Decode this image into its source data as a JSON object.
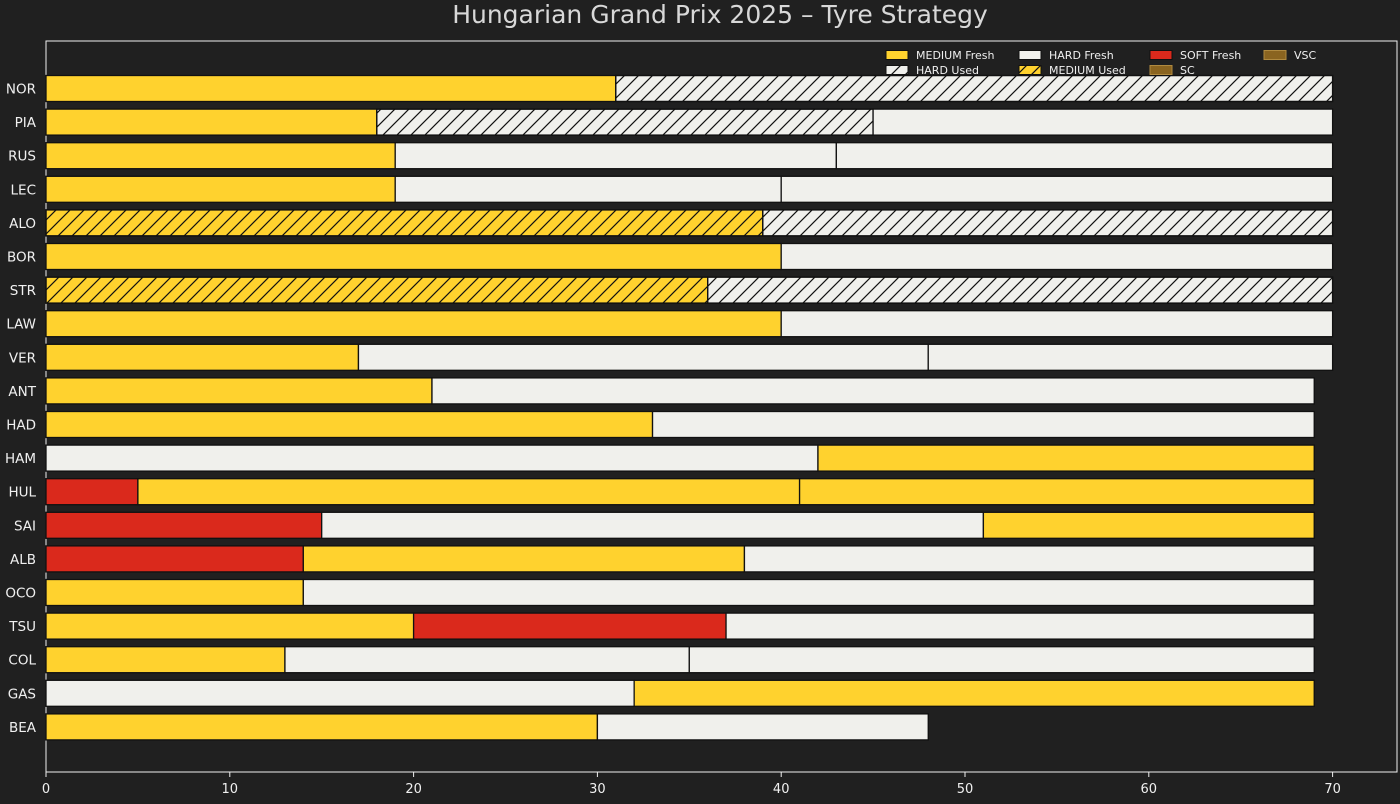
{
  "chart_data": {
    "type": "bar",
    "orientation": "horizontal",
    "stacked": true,
    "title": "Hungarian Grand Prix 2025  –  Tyre Strategy",
    "xlabel": "",
    "ylabel": "",
    "xlim": [
      0,
      73.5
    ],
    "xticks": [
      0,
      10,
      20,
      30,
      40,
      50,
      60,
      70
    ],
    "grid": false,
    "legend_position": "top-right",
    "colors": {
      "background": "#202020",
      "axes_edge": "#f0f0f0",
      "text": "#f0f0f0",
      "title": "#d8d8d8",
      "MEDIUM": "#ffd22e",
      "HARD": "#f0f0ec",
      "SOFT": "#da291c",
      "SC": "#8a6420",
      "VSC": "#8a6420",
      "edge": "#111111"
    },
    "legend": [
      {
        "label": "MEDIUM Fresh",
        "compound": "MEDIUM",
        "used": false
      },
      {
        "label": "HARD Used",
        "compound": "HARD",
        "used": true
      },
      {
        "label": "HARD Fresh",
        "compound": "HARD",
        "used": false
      },
      {
        "label": "MEDIUM Used",
        "compound": "MEDIUM",
        "used": true
      },
      {
        "label": "SOFT Fresh",
        "compound": "SOFT",
        "used": false
      },
      {
        "label": "SC",
        "compound": "SC",
        "used": false
      },
      {
        "label": "VSC",
        "compound": "VSC",
        "used": false
      }
    ],
    "drivers": [
      {
        "code": "NOR",
        "stints": [
          {
            "compound": "MEDIUM",
            "used": false,
            "start": 0,
            "end": 31
          },
          {
            "compound": "HARD",
            "used": true,
            "start": 31,
            "end": 70
          }
        ]
      },
      {
        "code": "PIA",
        "stints": [
          {
            "compound": "MEDIUM",
            "used": false,
            "start": 0,
            "end": 18
          },
          {
            "compound": "HARD",
            "used": true,
            "start": 18,
            "end": 45
          },
          {
            "compound": "HARD",
            "used": false,
            "start": 45,
            "end": 70
          }
        ]
      },
      {
        "code": "RUS",
        "stints": [
          {
            "compound": "MEDIUM",
            "used": false,
            "start": 0,
            "end": 19
          },
          {
            "compound": "HARD",
            "used": false,
            "start": 19,
            "end": 43
          },
          {
            "compound": "HARD",
            "used": false,
            "start": 43,
            "end": 70
          }
        ]
      },
      {
        "code": "LEC",
        "stints": [
          {
            "compound": "MEDIUM",
            "used": false,
            "start": 0,
            "end": 19
          },
          {
            "compound": "HARD",
            "used": false,
            "start": 19,
            "end": 40
          },
          {
            "compound": "HARD",
            "used": false,
            "start": 40,
            "end": 70
          }
        ]
      },
      {
        "code": "ALO",
        "stints": [
          {
            "compound": "MEDIUM",
            "used": true,
            "start": 0,
            "end": 39
          },
          {
            "compound": "HARD",
            "used": true,
            "start": 39,
            "end": 70
          }
        ]
      },
      {
        "code": "BOR",
        "stints": [
          {
            "compound": "MEDIUM",
            "used": false,
            "start": 0,
            "end": 40
          },
          {
            "compound": "HARD",
            "used": false,
            "start": 40,
            "end": 70
          }
        ]
      },
      {
        "code": "STR",
        "stints": [
          {
            "compound": "MEDIUM",
            "used": true,
            "start": 0,
            "end": 36
          },
          {
            "compound": "HARD",
            "used": true,
            "start": 36,
            "end": 70
          }
        ]
      },
      {
        "code": "LAW",
        "stints": [
          {
            "compound": "MEDIUM",
            "used": false,
            "start": 0,
            "end": 40
          },
          {
            "compound": "HARD",
            "used": false,
            "start": 40,
            "end": 70
          }
        ]
      },
      {
        "code": "VER",
        "stints": [
          {
            "compound": "MEDIUM",
            "used": false,
            "start": 0,
            "end": 17
          },
          {
            "compound": "HARD",
            "used": false,
            "start": 17,
            "end": 48
          },
          {
            "compound": "HARD",
            "used": false,
            "start": 48,
            "end": 70
          }
        ]
      },
      {
        "code": "ANT",
        "stints": [
          {
            "compound": "MEDIUM",
            "used": false,
            "start": 0,
            "end": 21
          },
          {
            "compound": "HARD",
            "used": false,
            "start": 21,
            "end": 69
          }
        ]
      },
      {
        "code": "HAD",
        "stints": [
          {
            "compound": "MEDIUM",
            "used": false,
            "start": 0,
            "end": 33
          },
          {
            "compound": "HARD",
            "used": false,
            "start": 33,
            "end": 69
          }
        ]
      },
      {
        "code": "HAM",
        "stints": [
          {
            "compound": "HARD",
            "used": false,
            "start": 0,
            "end": 42
          },
          {
            "compound": "MEDIUM",
            "used": false,
            "start": 42,
            "end": 69
          }
        ]
      },
      {
        "code": "HUL",
        "stints": [
          {
            "compound": "SOFT",
            "used": false,
            "start": 0,
            "end": 5
          },
          {
            "compound": "MEDIUM",
            "used": false,
            "start": 5,
            "end": 41
          },
          {
            "compound": "MEDIUM",
            "used": false,
            "start": 41,
            "end": 69
          }
        ]
      },
      {
        "code": "SAI",
        "stints": [
          {
            "compound": "SOFT",
            "used": false,
            "start": 0,
            "end": 15
          },
          {
            "compound": "HARD",
            "used": false,
            "start": 15,
            "end": 51
          },
          {
            "compound": "MEDIUM",
            "used": false,
            "start": 51,
            "end": 69
          }
        ]
      },
      {
        "code": "ALB",
        "stints": [
          {
            "compound": "SOFT",
            "used": false,
            "start": 0,
            "end": 14
          },
          {
            "compound": "MEDIUM",
            "used": false,
            "start": 14,
            "end": 38
          },
          {
            "compound": "HARD",
            "used": false,
            "start": 38,
            "end": 69
          }
        ]
      },
      {
        "code": "OCO",
        "stints": [
          {
            "compound": "MEDIUM",
            "used": false,
            "start": 0,
            "end": 14
          },
          {
            "compound": "HARD",
            "used": false,
            "start": 14,
            "end": 69
          }
        ]
      },
      {
        "code": "TSU",
        "stints": [
          {
            "compound": "MEDIUM",
            "used": false,
            "start": 0,
            "end": 20
          },
          {
            "compound": "SOFT",
            "used": false,
            "start": 20,
            "end": 37
          },
          {
            "compound": "HARD",
            "used": false,
            "start": 37,
            "end": 69
          }
        ]
      },
      {
        "code": "COL",
        "stints": [
          {
            "compound": "MEDIUM",
            "used": false,
            "start": 0,
            "end": 13
          },
          {
            "compound": "HARD",
            "used": false,
            "start": 13,
            "end": 35
          },
          {
            "compound": "HARD",
            "used": false,
            "start": 35,
            "end": 69
          }
        ]
      },
      {
        "code": "GAS",
        "stints": [
          {
            "compound": "HARD",
            "used": false,
            "start": 0,
            "end": 32
          },
          {
            "compound": "MEDIUM",
            "used": false,
            "start": 32,
            "end": 69
          }
        ]
      },
      {
        "code": "BEA",
        "stints": [
          {
            "compound": "MEDIUM",
            "used": false,
            "start": 0,
            "end": 30
          },
          {
            "compound": "HARD",
            "used": false,
            "start": 30,
            "end": 48
          }
        ]
      }
    ]
  }
}
